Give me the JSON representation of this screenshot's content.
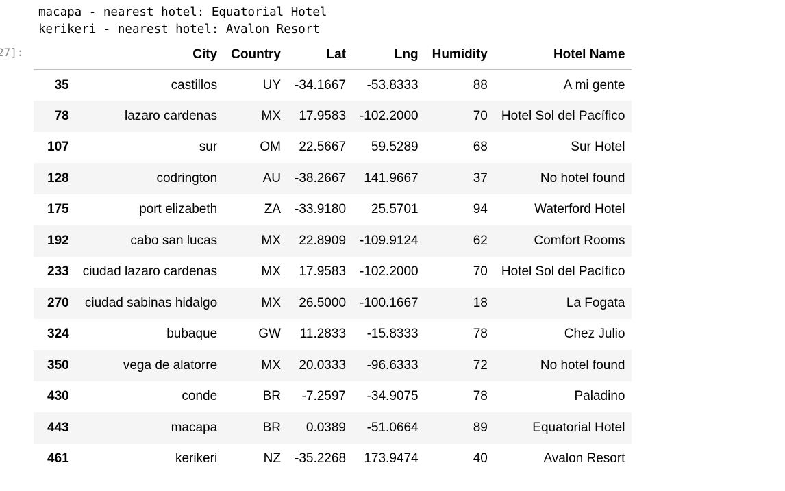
{
  "output": {
    "lines": [
      "macapa - nearest hotel: Equatorial Hotel",
      "kerikeri - nearest hotel: Avalon Resort"
    ],
    "prompt": "27]:"
  },
  "table": {
    "index_header": "",
    "columns": [
      "City",
      "Country",
      "Lat",
      "Lng",
      "Humidity",
      "Hotel Name"
    ],
    "rows": [
      {
        "index": "35",
        "city": "castillos",
        "country": "UY",
        "lat": "-34.1667",
        "lng": "-53.8333",
        "humidity": "88",
        "hotel": "A mi gente"
      },
      {
        "index": "78",
        "city": "lazaro cardenas",
        "country": "MX",
        "lat": "17.9583",
        "lng": "-102.2000",
        "humidity": "70",
        "hotel": "Hotel Sol del Pacífico"
      },
      {
        "index": "107",
        "city": "sur",
        "country": "OM",
        "lat": "22.5667",
        "lng": "59.5289",
        "humidity": "68",
        "hotel": "Sur Hotel"
      },
      {
        "index": "128",
        "city": "codrington",
        "country": "AU",
        "lat": "-38.2667",
        "lng": "141.9667",
        "humidity": "37",
        "hotel": "No hotel found"
      },
      {
        "index": "175",
        "city": "port elizabeth",
        "country": "ZA",
        "lat": "-33.9180",
        "lng": "25.5701",
        "humidity": "94",
        "hotel": "Waterford Hotel"
      },
      {
        "index": "192",
        "city": "cabo san lucas",
        "country": "MX",
        "lat": "22.8909",
        "lng": "-109.9124",
        "humidity": "62",
        "hotel": "Comfort Rooms"
      },
      {
        "index": "233",
        "city": "ciudad lazaro cardenas",
        "country": "MX",
        "lat": "17.9583",
        "lng": "-102.2000",
        "humidity": "70",
        "hotel": "Hotel Sol del Pacífico"
      },
      {
        "index": "270",
        "city": "ciudad sabinas hidalgo",
        "country": "MX",
        "lat": "26.5000",
        "lng": "-100.1667",
        "humidity": "18",
        "hotel": "La Fogata"
      },
      {
        "index": "324",
        "city": "bubaque",
        "country": "GW",
        "lat": "11.2833",
        "lng": "-15.8333",
        "humidity": "78",
        "hotel": "Chez Julio"
      },
      {
        "index": "350",
        "city": "vega de alatorre",
        "country": "MX",
        "lat": "20.0333",
        "lng": "-96.6333",
        "humidity": "72",
        "hotel": "No hotel found"
      },
      {
        "index": "430",
        "city": "conde",
        "country": "BR",
        "lat": "-7.2597",
        "lng": "-34.9075",
        "humidity": "78",
        "hotel": "Paladino"
      },
      {
        "index": "443",
        "city": "macapa",
        "country": "BR",
        "lat": "0.0389",
        "lng": "-51.0664",
        "humidity": "89",
        "hotel": "Equatorial Hotel"
      },
      {
        "index": "461",
        "city": "kerikeri",
        "country": "NZ",
        "lat": "-35.2268",
        "lng": "173.9474",
        "humidity": "40",
        "hotel": "Avalon Resort"
      }
    ]
  }
}
